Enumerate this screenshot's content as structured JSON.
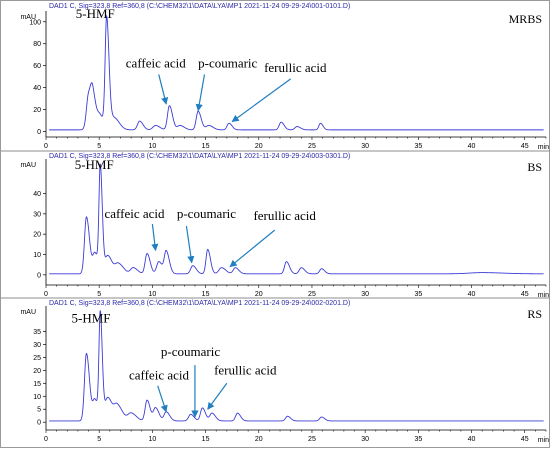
{
  "chart_data": [
    {
      "type": "line",
      "header": "DAD1 C, Sig=323,8 Ref=360,8 (C:\\CHEM32\\1\\DATA\\LYA\\MP1 2021-11-24 09-29-24\\001-0101.D)",
      "sample_label": "MRBS",
      "ylabel": "mAU",
      "xlabel": "min",
      "xlim": [
        0,
        47
      ],
      "ylim": [
        -5,
        108
      ],
      "xticks": [
        0,
        5,
        10,
        15,
        20,
        25,
        30,
        35,
        40,
        45
      ],
      "yticks": [
        0,
        20,
        40,
        60,
        80,
        100
      ],
      "baseline": 1.5,
      "series_color": "#3b3bd6",
      "peaks": [
        {
          "x": 4.0,
          "y": 31,
          "w": 0.2
        },
        {
          "x": 4.4,
          "y": 26,
          "w": 0.2
        },
        {
          "x": 5.1,
          "y": 12,
          "w": 0.25
        },
        {
          "x": 5.7,
          "y": 99,
          "w": 0.14
        },
        {
          "x": 6.4,
          "y": 11,
          "w": 0.3
        },
        {
          "x": 8.8,
          "y": 8,
          "w": 0.2
        },
        {
          "x": 10.3,
          "y": 4,
          "w": 0.25
        },
        {
          "x": 11.6,
          "y": 22,
          "w": 0.18
        },
        {
          "x": 12.6,
          "y": 4,
          "w": 0.25
        },
        {
          "x": 14.3,
          "y": 17,
          "w": 0.18
        },
        {
          "x": 15.3,
          "y": 4,
          "w": 0.25
        },
        {
          "x": 17.2,
          "y": 6,
          "w": 0.18
        },
        {
          "x": 22.1,
          "y": 7,
          "w": 0.18
        },
        {
          "x": 23.6,
          "y": 3,
          "w": 0.2
        },
        {
          "x": 25.8,
          "y": 6,
          "w": 0.15
        }
      ],
      "annotations": [
        {
          "text": "5-HMF",
          "x": 2.8,
          "y": 107,
          "tip_x": 5.7,
          "tip_y": 99,
          "arrow": false
        },
        {
          "text": "caffeic acid",
          "x": 7.5,
          "y": 62,
          "tip_x": 11.3,
          "tip_y": 25,
          "arrow": true,
          "from_x": 10.6,
          "from_y": 52
        },
        {
          "text": "p-coumaric",
          "x": 14.3,
          "y": 62,
          "tip_x": 14.3,
          "tip_y": 19,
          "arrow": true,
          "from_x": 14.9,
          "from_y": 52
        },
        {
          "text": "ferullic acid",
          "x": 20.5,
          "y": 58,
          "tip_x": 17.5,
          "tip_y": 9,
          "arrow": true,
          "from_x": 23.0,
          "from_y": 48
        }
      ]
    },
    {
      "type": "line",
      "header": "DAD1 C, Sig=323,8 Ref=360,8 (C:\\CHEM32\\1\\DATA\\LYA\\MP1 2021-11-24 09-29-24\\003-0301.D)",
      "sample_label": "BS",
      "ylabel": "mAU",
      "xlabel": "min",
      "xlim": [
        0,
        47
      ],
      "ylim": [
        -5,
        56
      ],
      "xticks": [
        0,
        5,
        10,
        15,
        20,
        25,
        30,
        35,
        40,
        45
      ],
      "yticks": [
        0,
        10,
        20,
        30,
        40
      ],
      "baseline": 0.5,
      "series_color": "#3b3bd6",
      "peaks": [
        {
          "x": 3.8,
          "y": 28,
          "w": 0.18
        },
        {
          "x": 4.6,
          "y": 10,
          "w": 0.2
        },
        {
          "x": 5.1,
          "y": 51,
          "w": 0.12
        },
        {
          "x": 5.8,
          "y": 9,
          "w": 0.25
        },
        {
          "x": 6.8,
          "y": 5,
          "w": 0.3
        },
        {
          "x": 8.2,
          "y": 3,
          "w": 0.25
        },
        {
          "x": 9.5,
          "y": 10,
          "w": 0.18
        },
        {
          "x": 10.6,
          "y": 6,
          "w": 0.2
        },
        {
          "x": 11.3,
          "y": 11,
          "w": 0.18
        },
        {
          "x": 13.8,
          "y": 4,
          "w": 0.2
        },
        {
          "x": 15.2,
          "y": 12,
          "w": 0.16
        },
        {
          "x": 16.5,
          "y": 3,
          "w": 0.25
        },
        {
          "x": 17.8,
          "y": 3,
          "w": 0.2
        },
        {
          "x": 22.6,
          "y": 6,
          "w": 0.18
        },
        {
          "x": 24.0,
          "y": 3,
          "w": 0.2
        },
        {
          "x": 25.9,
          "y": 2.5,
          "w": 0.18
        },
        {
          "x": 41.0,
          "y": 0.6,
          "w": 1.2
        }
      ],
      "annotations": [
        {
          "text": "5-HMF",
          "x": 2.7,
          "y": 54,
          "tip_x": 5.1,
          "tip_y": 51,
          "arrow": false
        },
        {
          "text": "caffeic acid",
          "x": 5.5,
          "y": 30,
          "tip_x": 10.3,
          "tip_y": 12,
          "arrow": true,
          "from_x": 10.0,
          "from_y": 25
        },
        {
          "text": "p-coumaric",
          "x": 12.3,
          "y": 30,
          "tip_x": 13.7,
          "tip_y": 6,
          "arrow": true,
          "from_x": 13.2,
          "from_y": 24
        },
        {
          "text": "ferullic acid",
          "x": 19.5,
          "y": 29,
          "tip_x": 17.3,
          "tip_y": 4,
          "arrow": true,
          "from_x": 21.5,
          "from_y": 22
        }
      ]
    },
    {
      "type": "line",
      "header": "DAD1 C, Sig=323,8 Ref=360,8 (C:\\CHEM32\\1\\DATA\\LYA\\MP1 2021-11-24 09-29-24\\002-0201.D)",
      "sample_label": "RS",
      "ylabel": "mAU",
      "xlabel": "min",
      "xlim": [
        0,
        47
      ],
      "ylim": [
        -3,
        44
      ],
      "xticks": [
        0,
        5,
        10,
        15,
        20,
        25,
        30,
        35,
        40,
        45
      ],
      "yticks": [
        0,
        5,
        10,
        15,
        20,
        25,
        30,
        35
      ],
      "baseline": 0.5,
      "series_color": "#3b3bd6",
      "peaks": [
        {
          "x": 3.8,
          "y": 26,
          "w": 0.18
        },
        {
          "x": 4.6,
          "y": 8,
          "w": 0.2
        },
        {
          "x": 5.1,
          "y": 40,
          "w": 0.12
        },
        {
          "x": 5.8,
          "y": 9,
          "w": 0.25
        },
        {
          "x": 6.7,
          "y": 6,
          "w": 0.3
        },
        {
          "x": 8.0,
          "y": 3,
          "w": 0.3
        },
        {
          "x": 9.5,
          "y": 8,
          "w": 0.18
        },
        {
          "x": 10.3,
          "y": 5,
          "w": 0.2
        },
        {
          "x": 11.3,
          "y": 3.5,
          "w": 0.2
        },
        {
          "x": 13.6,
          "y": 2.5,
          "w": 0.2
        },
        {
          "x": 14.7,
          "y": 5,
          "w": 0.18
        },
        {
          "x": 15.6,
          "y": 3,
          "w": 0.2
        },
        {
          "x": 18.0,
          "y": 3,
          "w": 0.18
        },
        {
          "x": 22.7,
          "y": 1.8,
          "w": 0.18
        },
        {
          "x": 25.9,
          "y": 1.5,
          "w": 0.18
        }
      ],
      "annotations": [
        {
          "text": "5-HMF",
          "x": 2.4,
          "y": 40,
          "tip_x": 5.1,
          "tip_y": 40,
          "arrow": false
        },
        {
          "text": "p-coumaric",
          "x": 10.8,
          "y": 27,
          "tip_x": 14.0,
          "tip_y": 2,
          "arrow": true,
          "from_x": 14.0,
          "from_y": 22
        },
        {
          "text": "caffeic acid",
          "x": 7.8,
          "y": 18,
          "tip_x": 11.3,
          "tip_y": 4,
          "arrow": true,
          "from_x": 10.5,
          "from_y": 14
        },
        {
          "text": "ferullic acid",
          "x": 15.8,
          "y": 20,
          "tip_x": 15.2,
          "tip_y": 5,
          "arrow": true,
          "from_x": 17.0,
          "from_y": 15
        }
      ]
    }
  ]
}
